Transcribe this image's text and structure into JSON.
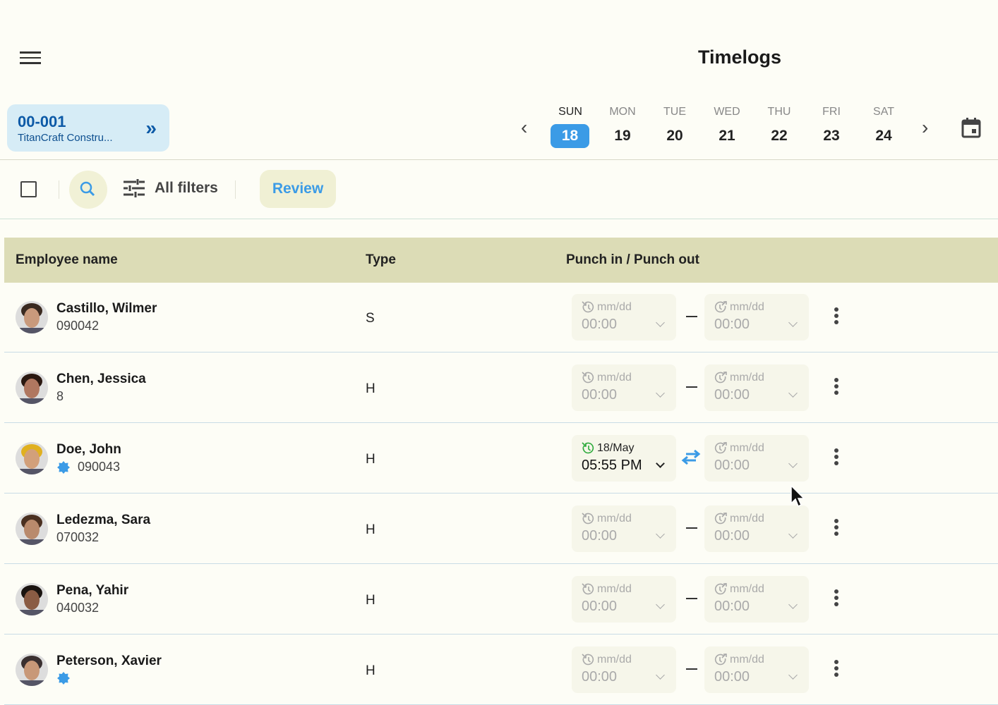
{
  "header": {
    "title": "Timelogs",
    "menu_icon": "hamburger-menu-icon"
  },
  "job": {
    "code": "00-001",
    "name": "TitanCraft Constru...",
    "icon": "double-chevron-right-icon"
  },
  "week": {
    "selected": 0,
    "days": [
      {
        "name": "SUN",
        "date": "18"
      },
      {
        "name": "MON",
        "date": "19"
      },
      {
        "name": "TUE",
        "date": "20"
      },
      {
        "name": "WED",
        "date": "21"
      },
      {
        "name": "THU",
        "date": "22"
      },
      {
        "name": "FRI",
        "date": "23"
      },
      {
        "name": "SAT",
        "date": "24"
      }
    ],
    "accent": "#3b9be6"
  },
  "toolbar": {
    "filters_label": "All filters",
    "review_label": "Review"
  },
  "table": {
    "columns": [
      "Employee name",
      "Type",
      "Punch in / Punch out"
    ],
    "rows": [
      {
        "name": "Castillo, Wilmer",
        "id": "090042",
        "type": "S",
        "starred": false,
        "in_date": "mm/dd",
        "in_time": "00:00",
        "in_set": false,
        "out_date": "mm/dd",
        "out_time": "00:00"
      },
      {
        "name": "Chen, Jessica",
        "id": "8",
        "type": "H",
        "starred": false,
        "in_date": "mm/dd",
        "in_time": "00:00",
        "in_set": false,
        "out_date": "mm/dd",
        "out_time": "00:00"
      },
      {
        "name": "Doe, John",
        "id": "090043",
        "type": "H",
        "starred": true,
        "in_date": "18/May",
        "in_time": "05:55 PM",
        "in_set": true,
        "out_date": "mm/dd",
        "out_time": "00:00"
      },
      {
        "name": "Ledezma, Sara",
        "id": "070032",
        "type": "H",
        "starred": false,
        "in_date": "mm/dd",
        "in_time": "00:00",
        "in_set": false,
        "out_date": "mm/dd",
        "out_time": "00:00"
      },
      {
        "name": "Pena, Yahir",
        "id": "040032",
        "type": "H",
        "starred": false,
        "in_date": "mm/dd",
        "in_time": "00:00",
        "in_set": false,
        "out_date": "mm/dd",
        "out_time": "00:00"
      },
      {
        "name": "Peterson, Xavier",
        "id": "",
        "type": "H",
        "starred": true,
        "in_date": "mm/dd",
        "in_time": "00:00",
        "in_set": false,
        "out_date": "mm/dd",
        "out_time": "00:00"
      }
    ]
  }
}
